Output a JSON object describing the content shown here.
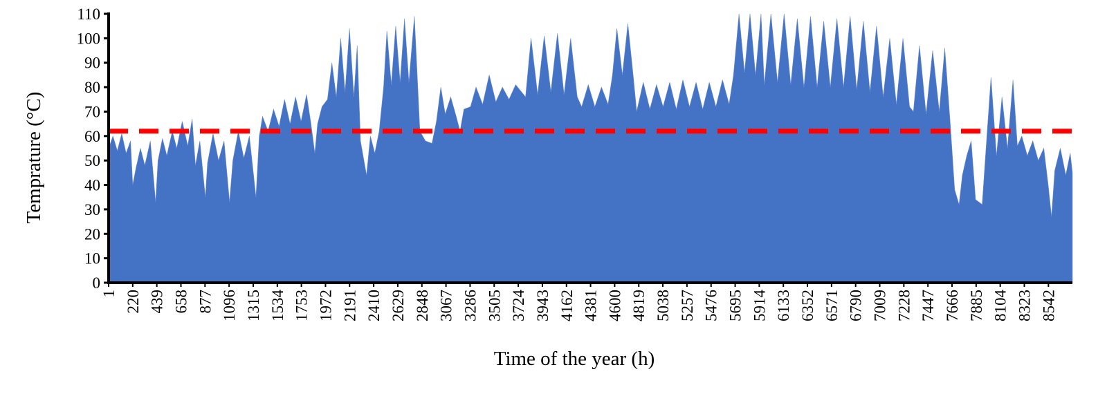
{
  "chart_data": {
    "type": "area",
    "xlabel": "Time of the year (h)",
    "ylabel": "Temprature (°C)",
    "color": "#4472c4",
    "x": [
      0,
      40,
      80,
      120,
      160,
      200,
      220,
      250,
      290,
      330,
      380,
      428,
      450,
      490,
      530,
      580,
      620,
      670,
      720,
      760,
      790,
      830,
      880,
      900,
      950,
      1000,
      1050,
      1100,
      1130,
      1180,
      1230,
      1280,
      1340,
      1370,
      1400,
      1450,
      1500,
      1550,
      1600,
      1650,
      1700,
      1750,
      1800,
      1840,
      1875,
      1900,
      1940,
      1990,
      2030,
      2070,
      2110,
      2150,
      2190,
      2230,
      2260,
      2290,
      2345,
      2380,
      2420,
      2460,
      2500,
      2530,
      2570,
      2610,
      2650,
      2690,
      2730,
      2780,
      2830,
      2880,
      2940,
      2980,
      3020,
      3060,
      3110,
      3160,
      3195,
      3230,
      3290,
      3340,
      3400,
      3460,
      3520,
      3580,
      3640,
      3700,
      3790,
      3840,
      3900,
      3960,
      4020,
      4080,
      4140,
      4200,
      4260,
      4300,
      4360,
      4420,
      4480,
      4540,
      4580,
      4620,
      4670,
      4720,
      4770,
      4800,
      4860,
      4920,
      4980,
      5040,
      5100,
      5160,
      5220,
      5280,
      5340,
      5400,
      5460,
      5520,
      5580,
      5640,
      5680,
      5730,
      5780,
      5830,
      5880,
      5930,
      5960,
      6020,
      6080,
      6140,
      6200,
      6260,
      6320,
      6380,
      6440,
      6500,
      6560,
      6620,
      6680,
      6740,
      6800,
      6860,
      6920,
      6980,
      7040,
      7100,
      7160,
      7220,
      7280,
      7315,
      7370,
      7430,
      7490,
      7550,
      7600,
      7650,
      7690,
      7730,
      7760,
      7800,
      7840,
      7880,
      7940,
      7975,
      8020,
      8070,
      8120,
      8170,
      8220,
      8260,
      8300,
      8350,
      8400,
      8450,
      8500,
      8540,
      8570,
      8600,
      8650,
      8700,
      8740,
      8760
    ],
    "values": [
      55,
      60,
      54,
      61,
      53,
      58,
      40,
      47,
      55,
      48,
      58,
      33,
      50,
      59,
      52,
      62,
      55,
      66,
      56,
      67,
      48,
      58,
      35,
      49,
      61,
      50,
      58,
      33,
      50,
      62,
      51,
      60,
      35,
      60,
      68,
      62,
      71,
      64,
      75,
      65,
      76,
      66,
      77,
      65,
      53,
      65,
      72,
      75,
      90,
      76,
      100,
      78,
      104,
      76,
      97,
      58,
      44,
      60,
      53,
      62,
      80,
      103,
      81,
      105,
      82,
      108,
      82,
      109,
      62,
      58,
      57,
      66,
      80,
      69,
      76,
      68,
      62,
      71,
      72,
      80,
      73,
      85,
      74,
      80,
      75,
      81,
      76,
      100,
      77,
      101,
      78,
      102,
      77,
      100,
      76,
      72,
      81,
      72,
      80,
      73,
      85,
      104,
      85,
      106,
      84,
      70,
      82,
      71,
      81,
      72,
      82,
      71,
      83,
      72,
      82,
      71,
      82,
      72,
      83,
      73,
      85,
      110,
      86,
      110,
      85,
      110,
      81,
      110,
      82,
      110,
      81,
      108,
      80,
      109,
      80,
      107,
      80,
      108,
      80,
      109,
      79,
      107,
      78,
      105,
      76,
      100,
      73,
      100,
      72,
      70,
      97,
      69,
      95,
      70,
      96,
      65,
      38,
      32,
      44,
      52,
      58,
      34,
      32,
      55,
      84,
      52,
      76,
      55,
      83,
      56,
      60,
      52,
      58,
      50,
      55,
      40,
      27,
      46,
      55,
      44,
      53,
      45
    ],
    "xlim": [
      1,
      8760
    ],
    "xticks": [
      1,
      220,
      439,
      658,
      877,
      1096,
      1315,
      1534,
      1753,
      1972,
      2191,
      2410,
      2629,
      2848,
      3067,
      3286,
      3505,
      3724,
      3943,
      4162,
      4381,
      4600,
      4819,
      5038,
      5257,
      5476,
      5695,
      5914,
      6133,
      6352,
      6571,
      6790,
      7009,
      7228,
      7447,
      7666,
      7885,
      8104,
      8323,
      8542
    ],
    "ylim": [
      0,
      110
    ],
    "yticks": [
      0,
      10,
      20,
      30,
      40,
      50,
      60,
      70,
      80,
      90,
      100,
      110
    ],
    "reference_line": {
      "value": 62,
      "color": "#ff0000"
    }
  }
}
